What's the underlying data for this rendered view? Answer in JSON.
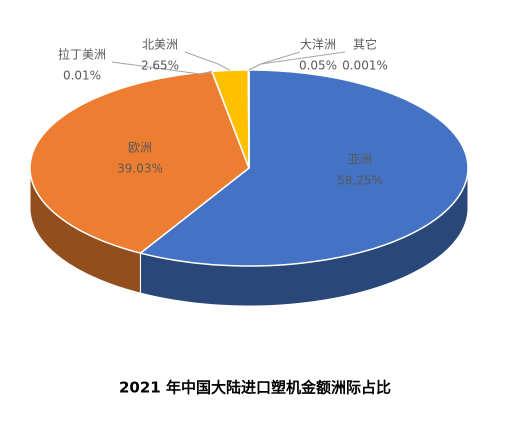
{
  "chart_data": {
    "type": "pie",
    "title": "2021 年中国大陆进口塑机金额洲际占比",
    "categories": [
      "亚洲",
      "欧洲",
      "拉丁美洲",
      "北美洲",
      "大洋洲",
      "其它"
    ],
    "values": [
      58.25,
      39.03,
      0.01,
      2.65,
      0.05,
      0.001
    ],
    "value_labels": [
      "58.25%",
      "39.03%",
      "0.01%",
      "2.65%",
      "0.05%",
      "0.001%"
    ],
    "colors": [
      "#4472c4",
      "#ed7d31",
      "#a5a5a5",
      "#ffc000",
      "#5b9bd5",
      "#70ad47"
    ]
  }
}
